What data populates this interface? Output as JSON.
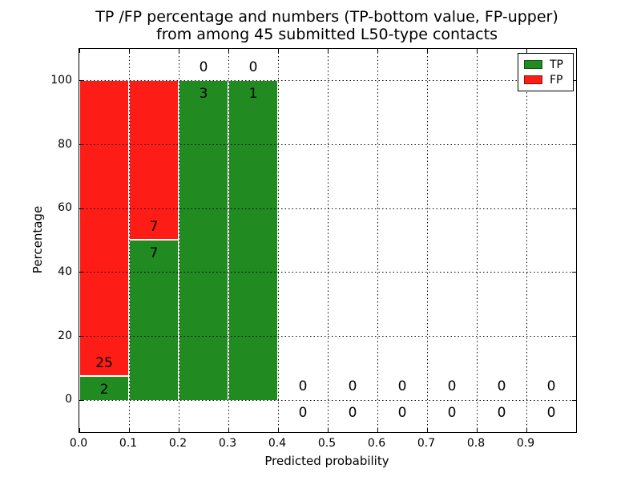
{
  "figure": {
    "title_line1": "TP /FP percentage and numbers (TP-bottom value, FP-upper)",
    "title_line2": "from among 45 submitted L50-type contacts",
    "xlabel": "Predicted probability",
    "ylabel": "Percentage"
  },
  "legend": {
    "items": [
      {
        "label": "TP",
        "color": "#218a21"
      },
      {
        "label": "FP",
        "color": "#fe1c17"
      }
    ]
  },
  "chart_data": {
    "type": "bar",
    "stacked": true,
    "title": "TP /FP percentage and numbers (TP-bottom value, FP-upper)\nfrom among 45 submitted L50-type contacts",
    "xlabel": "Predicted probability",
    "ylabel": "Percentage",
    "xlim": [
      0.0,
      1.0
    ],
    "ylim": [
      -10,
      110
    ],
    "xticks": [
      0.0,
      0.1,
      0.2,
      0.3,
      0.4,
      0.5,
      0.6,
      0.7,
      0.8,
      0.9
    ],
    "xtick_labels": [
      "0.0",
      "0.1",
      "0.2",
      "0.3",
      "0.4",
      "0.5",
      "0.6",
      "0.7",
      "0.8",
      "0.9"
    ],
    "yticks": [
      0,
      20,
      40,
      60,
      80,
      100
    ],
    "ytick_labels": [
      "0",
      "20",
      "40",
      "60",
      "80",
      "100"
    ],
    "grid": "dotted",
    "legend_position": "upper right",
    "total_contacts": 45,
    "bin_width": 0.1,
    "bin_starts": [
      0.0,
      0.1,
      0.2,
      0.3,
      0.4,
      0.5,
      0.6,
      0.7,
      0.8,
      0.9
    ],
    "series": [
      {
        "name": "TP",
        "color": "#218a21",
        "values": [
          2,
          7,
          3,
          1,
          0,
          0,
          0,
          0,
          0,
          0
        ]
      },
      {
        "name": "FP",
        "color": "#fe1c17",
        "values": [
          25,
          7,
          0,
          0,
          0,
          0,
          0,
          0,
          0,
          0
        ]
      }
    ],
    "tp_percent_per_bin": [
      7.41,
      50.0,
      100.0,
      100.0,
      0,
      0,
      0,
      0,
      0,
      0
    ],
    "note_label_rule": "FP count printed above TP-bar top, TP count printed below it"
  }
}
